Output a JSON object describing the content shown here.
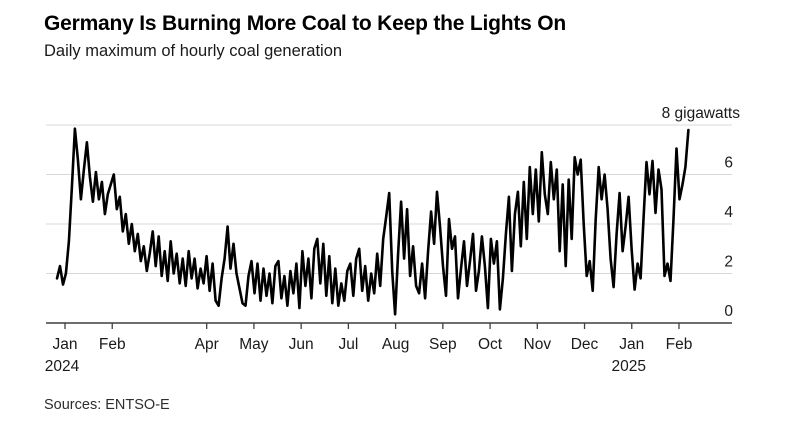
{
  "chart": {
    "title": "Germany Is Burning More Coal to Keep the Lights On",
    "subtitle": "Daily maximum of hourly coal generation",
    "source_label": "Sources: ENTSO-E"
  },
  "chart_data": {
    "type": "line",
    "title": "Germany Is Burning More Coal to Keep the Lights On",
    "subtitle": "Daily maximum of hourly coal generation",
    "source": "Sources: ENTSO-E",
    "unit": "gigawatts",
    "ylim": [
      0,
      8
    ],
    "grid": true,
    "legend_position": "none",
    "yticks": [
      {
        "value": 0,
        "label": "0"
      },
      {
        "value": 2,
        "label": "2"
      },
      {
        "value": 4,
        "label": "4"
      },
      {
        "value": 6,
        "label": "6"
      },
      {
        "value": 8,
        "label": "8 gigawatts"
      }
    ],
    "xticks": [
      {
        "label": "Jan",
        "month_index": 0,
        "year_label": "2024"
      },
      {
        "label": "Feb",
        "month_index": 1
      },
      {
        "label": "Apr",
        "month_index": 3
      },
      {
        "label": "May",
        "month_index": 4
      },
      {
        "label": "Jun",
        "month_index": 5
      },
      {
        "label": "Jul",
        "month_index": 6
      },
      {
        "label": "Aug",
        "month_index": 7
      },
      {
        "label": "Sep",
        "month_index": 8
      },
      {
        "label": "Oct",
        "month_index": 9
      },
      {
        "label": "Nov",
        "month_index": 10
      },
      {
        "label": "Dec",
        "month_index": 11
      },
      {
        "label": "Jan",
        "month_index": 12,
        "year_label": "2025"
      },
      {
        "label": "Feb",
        "month_index": 13
      }
    ],
    "x_range_months": [
      -0.17,
      13.2
    ],
    "sampling_note": "values sampled ~every 2 days, late Dec 2023 through mid-Feb 2025",
    "line_color": "#000000",
    "grid_color": "#d8d8d8",
    "axis_color": "#3f3f3f",
    "series": [
      {
        "name": "Daily maximum of hourly coal generation (GW)",
        "values": [
          1.8,
          2.3,
          1.55,
          2.0,
          3.3,
          5.5,
          7.85,
          6.6,
          5.0,
          6.2,
          7.3,
          5.9,
          4.9,
          6.1,
          5.0,
          5.7,
          4.4,
          5.2,
          5.6,
          6.0,
          4.6,
          5.1,
          3.7,
          4.4,
          3.2,
          4.0,
          2.9,
          3.6,
          2.5,
          3.1,
          2.1,
          2.8,
          3.7,
          2.3,
          3.5,
          1.9,
          2.9,
          1.7,
          3.3,
          2.0,
          2.8,
          1.6,
          2.6,
          1.5,
          2.9,
          1.8,
          2.6,
          1.4,
          2.2,
          1.6,
          2.7,
          1.3,
          2.4,
          0.9,
          0.7,
          1.8,
          2.6,
          3.9,
          2.2,
          3.2,
          2.0,
          1.4,
          0.8,
          0.7,
          1.9,
          2.5,
          1.2,
          2.4,
          0.9,
          2.2,
          1.1,
          2.0,
          0.8,
          2.3,
          2.5,
          1.0,
          1.9,
          0.7,
          2.1,
          1.2,
          2.4,
          0.6,
          2.9,
          1.5,
          2.6,
          1.0,
          3.0,
          3.4,
          1.6,
          3.2,
          1.1,
          2.7,
          0.8,
          2.2,
          0.7,
          1.6,
          0.9,
          2.1,
          2.4,
          1.1,
          2.6,
          3.0,
          1.3,
          2.3,
          0.9,
          2.0,
          1.2,
          2.8,
          1.5,
          3.4,
          4.3,
          5.25,
          2.1,
          0.35,
          2.8,
          4.9,
          2.6,
          4.6,
          1.9,
          3.1,
          1.5,
          1.2,
          2.4,
          1.0,
          2.9,
          4.5,
          3.2,
          5.3,
          3.9,
          2.3,
          1.1,
          4.2,
          3.0,
          3.5,
          1.0,
          2.2,
          3.3,
          1.5,
          2.5,
          3.6,
          1.3,
          2.1,
          3.5,
          2.3,
          0.6,
          3.4,
          2.4,
          3.3,
          0.55,
          1.8,
          3.6,
          5.1,
          2.1,
          4.4,
          5.3,
          3.1,
          5.7,
          3.4,
          6.3,
          4.4,
          6.2,
          4.1,
          6.9,
          5.2,
          4.4,
          6.5,
          5.0,
          6.2,
          2.9,
          5.6,
          2.3,
          5.8,
          3.4,
          6.7,
          6.0,
          6.6,
          4.0,
          1.9,
          2.5,
          1.3,
          4.2,
          6.3,
          5.0,
          6.0,
          4.6,
          2.6,
          1.45,
          3.6,
          5.25,
          2.9,
          3.9,
          5.1,
          3.0,
          1.35,
          2.4,
          1.8,
          4.2,
          6.5,
          5.2,
          6.55,
          4.45,
          6.2,
          5.4,
          1.9,
          2.4,
          1.7,
          4.2,
          7.05,
          5.0,
          5.6,
          6.3,
          7.8
        ]
      }
    ]
  }
}
